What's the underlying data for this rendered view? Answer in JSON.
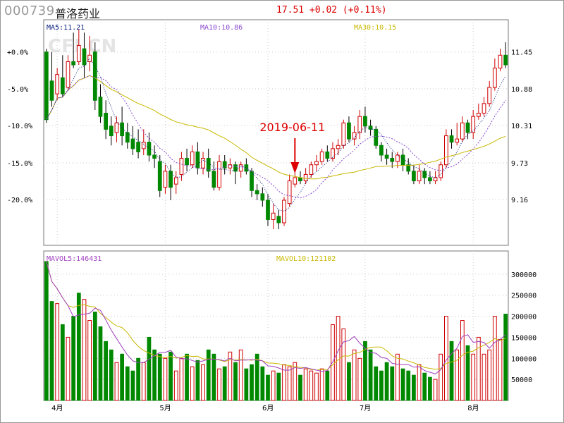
{
  "header": {
    "code": "000739",
    "name": "普洛药业",
    "price_line": "17.51 +0.02 (+0.11%)"
  },
  "watermark": "CFI.CN",
  "annotation": {
    "date_label": "2019-06-11"
  },
  "colors": {
    "up": "#d00000",
    "down": "#008800",
    "ma5": "#0a2080",
    "ma10": "#8a4ad0",
    "ma30": "#c8b800",
    "vma5": "#a040c0",
    "vma10": "#c8b800"
  },
  "chart_data": [
    {
      "type": "candlestick",
      "legend": {
        "ma5": "MA5:11.21",
        "ma10": "MA10:10.86",
        "ma30": "MA30:10.15"
      },
      "left_axis_ticks": [
        "+0.0%",
        "-5.0%",
        "-10.0%",
        "-15.0%",
        "-20.0%"
      ],
      "left_axis_values": [
        0,
        -5,
        -10,
        -15,
        -20
      ],
      "right_axis_ticks": [
        "11.45",
        "10.88",
        "10.31",
        "9.73",
        "9.16"
      ],
      "right_axis_values": [
        11.45,
        10.88,
        10.31,
        9.73,
        9.16
      ],
      "ylim": [
        8.45,
        11.95
      ],
      "x_labels": [
        "4月",
        "5月",
        "6月",
        "7月",
        "8月"
      ],
      "x_label_index": [
        2,
        22,
        41,
        59,
        79
      ],
      "highlight_index": 46,
      "candles": [
        [
          11.45,
          10.4,
          11.5,
          10.35
        ],
        [
          11.0,
          10.7,
          11.45,
          10.6
        ],
        [
          10.8,
          11.1,
          11.2,
          10.7
        ],
        [
          11.05,
          10.8,
          11.4,
          10.75
        ],
        [
          10.9,
          11.3,
          11.4,
          10.85
        ],
        [
          11.3,
          11.25,
          11.75,
          11.2
        ],
        [
          11.3,
          11.55,
          11.8,
          11.25
        ],
        [
          11.5,
          11.25,
          11.75,
          11.05
        ],
        [
          11.3,
          11.4,
          11.7,
          11.15
        ],
        [
          11.45,
          10.7,
          11.6,
          10.55
        ],
        [
          10.75,
          10.45,
          10.95,
          10.35
        ],
        [
          10.5,
          10.25,
          10.7,
          10.1
        ],
        [
          10.3,
          10.15,
          10.45,
          10.0
        ],
        [
          10.2,
          10.35,
          10.45,
          10.05
        ],
        [
          10.35,
          10.15,
          10.6,
          10.0
        ],
        [
          10.2,
          10.05,
          10.35,
          9.95
        ],
        [
          10.1,
          9.95,
          10.3,
          9.85
        ],
        [
          10.05,
          9.9,
          10.25,
          9.8
        ],
        [
          9.95,
          10.05,
          10.25,
          9.85
        ],
        [
          10.05,
          9.85,
          10.2,
          9.75
        ],
        [
          9.85,
          9.8,
          10.0,
          9.65
        ],
        [
          9.75,
          9.3,
          9.85,
          9.2
        ],
        [
          9.35,
          9.6,
          9.7,
          9.25
        ],
        [
          9.6,
          9.35,
          9.7,
          9.15
        ],
        [
          9.4,
          9.5,
          9.6,
          9.25
        ],
        [
          9.55,
          9.8,
          9.9,
          9.45
        ],
        [
          9.8,
          9.7,
          9.95,
          9.6
        ],
        [
          9.7,
          9.9,
          10.0,
          9.65
        ],
        [
          9.9,
          9.65,
          10.05,
          9.55
        ],
        [
          9.65,
          9.8,
          9.9,
          9.55
        ],
        [
          9.8,
          9.6,
          9.95,
          9.5
        ],
        [
          9.6,
          9.35,
          9.75,
          9.3
        ],
        [
          9.35,
          9.75,
          9.85,
          9.3
        ],
        [
          9.75,
          9.65,
          9.85,
          9.55
        ],
        [
          9.65,
          9.7,
          9.8,
          9.55
        ],
        [
          9.7,
          9.6,
          9.75,
          9.4
        ],
        [
          9.6,
          9.7,
          9.75,
          9.5
        ],
        [
          9.7,
          9.6,
          9.8,
          9.55
        ],
        [
          9.6,
          9.3,
          9.65,
          9.2
        ],
        [
          9.3,
          9.25,
          9.4,
          9.15
        ],
        [
          9.25,
          9.15,
          9.35,
          9.05
        ],
        [
          9.15,
          8.85,
          9.25,
          8.75
        ],
        [
          8.85,
          8.95,
          9.1,
          8.7
        ],
        [
          8.9,
          8.8,
          9.0,
          8.7
        ],
        [
          8.8,
          9.15,
          9.2,
          8.75
        ],
        [
          9.1,
          9.45,
          9.55,
          9.05
        ],
        [
          9.4,
          9.5,
          9.6,
          9.35
        ],
        [
          9.5,
          9.45,
          9.6,
          9.4
        ],
        [
          9.45,
          9.55,
          9.65,
          9.4
        ],
        [
          9.55,
          9.7,
          9.75,
          9.5
        ],
        [
          9.7,
          9.75,
          9.85,
          9.6
        ],
        [
          9.75,
          9.9,
          9.95,
          9.7
        ],
        [
          9.9,
          9.8,
          10.0,
          9.75
        ],
        [
          9.8,
          9.95,
          10.05,
          9.75
        ],
        [
          9.95,
          10.0,
          10.1,
          9.85
        ],
        [
          10.0,
          10.35,
          10.4,
          9.95
        ],
        [
          10.35,
          10.1,
          10.45,
          10.05
        ],
        [
          10.1,
          10.2,
          10.3,
          10.0
        ],
        [
          10.2,
          10.45,
          10.55,
          10.1
        ],
        [
          10.45,
          10.3,
          10.6,
          10.2
        ],
        [
          10.3,
          10.25,
          10.4,
          10.15
        ],
        [
          10.25,
          10.0,
          10.3,
          9.95
        ],
        [
          10.0,
          9.85,
          10.05,
          9.75
        ],
        [
          9.85,
          9.8,
          9.95,
          9.7
        ],
        [
          9.8,
          9.75,
          9.9,
          9.65
        ],
        [
          9.75,
          9.85,
          9.9,
          9.65
        ],
        [
          9.85,
          9.7,
          9.95,
          9.6
        ],
        [
          9.7,
          9.6,
          9.8,
          9.55
        ],
        [
          9.6,
          9.45,
          9.7,
          9.4
        ],
        [
          9.45,
          9.6,
          9.7,
          9.4
        ],
        [
          9.6,
          9.5,
          9.65,
          9.4
        ],
        [
          9.5,
          9.45,
          9.6,
          9.4
        ],
        [
          9.45,
          9.5,
          9.6,
          9.4
        ],
        [
          9.5,
          9.7,
          9.75,
          9.45
        ],
        [
          9.7,
          10.15,
          10.25,
          9.65
        ],
        [
          10.15,
          10.05,
          10.25,
          9.95
        ],
        [
          10.05,
          10.1,
          10.35,
          10.0
        ],
        [
          10.1,
          10.35,
          10.45,
          10.05
        ],
        [
          10.35,
          10.2,
          10.4,
          10.1
        ],
        [
          10.2,
          10.45,
          10.55,
          10.1
        ],
        [
          10.45,
          10.5,
          10.65,
          10.4
        ],
        [
          10.5,
          10.65,
          10.75,
          10.45
        ],
        [
          10.65,
          10.9,
          11.0,
          10.6
        ],
        [
          10.9,
          11.2,
          11.35,
          10.85
        ],
        [
          11.2,
          11.4,
          11.5,
          11.15
        ],
        [
          11.4,
          11.25,
          11.6,
          11.2
        ]
      ]
    },
    {
      "type": "volume",
      "legend": {
        "vma5": "MAVOL5:146431",
        "vma10": "MAVOL10:121102"
      },
      "right_axis_ticks": [
        "300000",
        "250000",
        "200000",
        "150000",
        "100000",
        "50000"
      ],
      "right_axis_values": [
        300000,
        250000,
        200000,
        150000,
        100000,
        50000
      ],
      "ylim": [
        0,
        355000
      ],
      "volumes": [
        330000,
        235000,
        230000,
        180000,
        150000,
        200000,
        255000,
        240000,
        190000,
        210000,
        175000,
        140000,
        120000,
        90000,
        110000,
        80000,
        70000,
        100000,
        90000,
        150000,
        120000,
        110000,
        100000,
        115000,
        70000,
        100000,
        110000,
        80000,
        95000,
        85000,
        120000,
        110000,
        75000,
        80000,
        115000,
        90000,
        120000,
        75000,
        85000,
        110000,
        80000,
        60000,
        70000,
        65000,
        85000,
        80000,
        90000,
        60000,
        75000,
        70000,
        65000,
        75000,
        70000,
        180000,
        200000,
        170000,
        90000,
        120000,
        100000,
        140000,
        120000,
        80000,
        70000,
        90000,
        80000,
        110000,
        75000,
        70000,
        60000,
        85000,
        65000,
        55000,
        50000,
        110000,
        200000,
        140000,
        120000,
        190000,
        130000,
        110000,
        150000,
        110000,
        120000,
        200000,
        145000,
        205000
      ],
      "up": [
        0,
        0,
        1,
        0,
        1,
        0,
        0,
        1,
        1,
        0,
        0,
        0,
        0,
        1,
        0,
        0,
        0,
        0,
        1,
        0,
        0,
        0,
        1,
        0,
        1,
        1,
        0,
        1,
        0,
        1,
        0,
        0,
        1,
        0,
        1,
        0,
        1,
        0,
        0,
        0,
        0,
        0,
        1,
        0,
        1,
        1,
        1,
        0,
        1,
        1,
        1,
        1,
        0,
        1,
        1,
        1,
        0,
        1,
        1,
        0,
        0,
        0,
        0,
        0,
        0,
        1,
        0,
        0,
        0,
        1,
        0,
        0,
        1,
        1,
        1,
        0,
        1,
        1,
        0,
        1,
        1,
        1,
        1,
        1,
        1,
        0
      ]
    }
  ]
}
